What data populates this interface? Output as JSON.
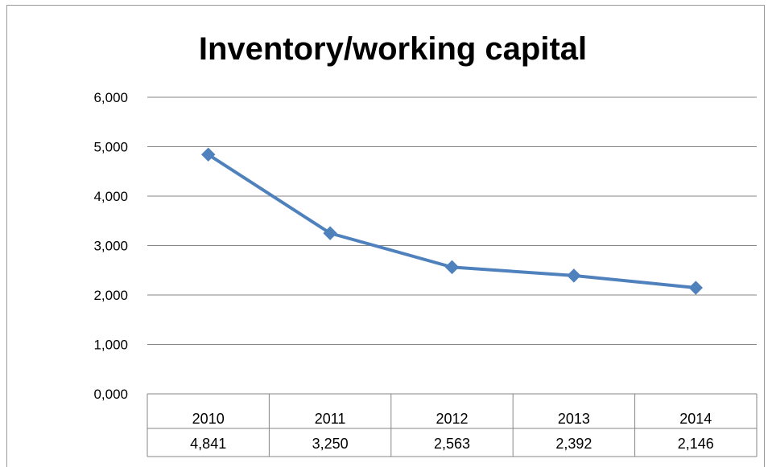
{
  "chart_data": {
    "type": "line",
    "title": "Inventory/working capital",
    "categories": [
      "2010",
      "2011",
      "2012",
      "2013",
      "2014"
    ],
    "series": [
      {
        "values": [
          4.841,
          3.25,
          2.563,
          2.392,
          2.146
        ]
      }
    ],
    "data_table": [
      "4,841",
      "3,250",
      "2,563",
      "2,392",
      "2,146"
    ],
    "ylim": [
      0,
      6
    ],
    "yticks": [
      0,
      1,
      2,
      3,
      4,
      5,
      6
    ],
    "ytick_labels": [
      "0,000",
      "1,000",
      "2,000",
      "3,000",
      "4,000",
      "5,000",
      "6,000"
    ],
    "grid": true,
    "legend": "none",
    "colors": {
      "series": "#4f81bd",
      "grid": "#868686"
    }
  }
}
